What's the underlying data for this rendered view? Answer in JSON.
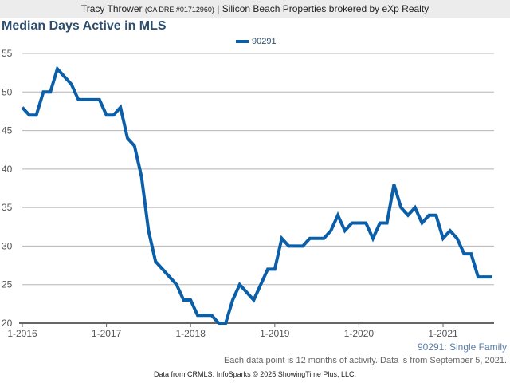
{
  "header": {
    "agent": "Tracy Thrower",
    "license": "(CA DRE #01712960)",
    "brokerage": "| Silicon Beach Properties brokered by eXp Realty"
  },
  "subtitle": "90291: Single Family",
  "note": "Each data point is 12 months of activity. Data is from September 5, 2021.",
  "footer": "Data from CRMLS. InfoSparks © 2025 ShowingTime Plus, LLC.",
  "colors": {
    "line": "#0b5ea8",
    "title": "#2d4e6e",
    "grid": "#b5b5b5"
  },
  "chart_data": {
    "type": "line",
    "title": "Median Days Active in MLS",
    "xlabel": "",
    "ylabel": "",
    "ylim": [
      20,
      55
    ],
    "yticks": [
      20,
      25,
      30,
      35,
      40,
      45,
      50,
      55
    ],
    "xtick_labels": [
      "1-2016",
      "1-2017",
      "1-2018",
      "1-2019",
      "1-2020",
      "1-2021"
    ],
    "x_start": "1-2016",
    "x_interval": "monthly",
    "grid": true,
    "legend_position": "top-center",
    "series": [
      {
        "name": "90291",
        "values": [
          48,
          47,
          47,
          50,
          50,
          53,
          52,
          51,
          49,
          49,
          49,
          49,
          47,
          47,
          48,
          44,
          43,
          39,
          32,
          28,
          27,
          26,
          25,
          23,
          23,
          21,
          21,
          21,
          20,
          20,
          23,
          25,
          24,
          23,
          25,
          27,
          27,
          31,
          30,
          30,
          30,
          31,
          31,
          31,
          32,
          34,
          32,
          33,
          33,
          33,
          31,
          33,
          33,
          38,
          35,
          34,
          35,
          33,
          34,
          34,
          31,
          32,
          31,
          29,
          29,
          26,
          26,
          26
        ]
      }
    ]
  }
}
